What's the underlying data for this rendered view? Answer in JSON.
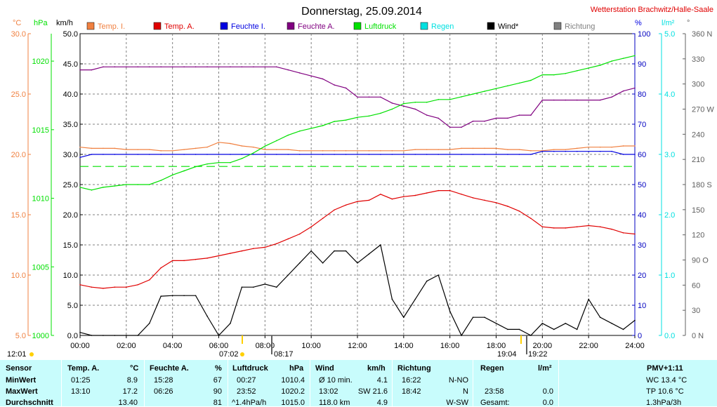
{
  "header": {
    "title": "Donnerstag, 25.09.2014",
    "station": "Wetterstation Brachwitz/Halle-Saale"
  },
  "colors": {
    "temp_i": "#f08040",
    "temp_a": "#e00000",
    "feuchte_i": "#0000e0",
    "feuchte_a": "#800080",
    "luftdruck": "#00e000",
    "regen": "#00e0e0",
    "wind": "#000000",
    "richtung": "#808080",
    "table_bg": "#c8fcfc"
  },
  "axis_units": {
    "celsius": "°C",
    "hpa": "hPa",
    "kmh": "km/h",
    "percent": "%",
    "lm2": "l/m²",
    "deg": "°"
  },
  "chart_data": {
    "type": "line",
    "title": "Donnerstag, 25.09.2014",
    "x": [
      "00:00",
      "00:30",
      "01:00",
      "01:30",
      "02:00",
      "02:30",
      "03:00",
      "03:30",
      "04:00",
      "04:30",
      "05:00",
      "05:30",
      "06:00",
      "06:30",
      "07:00",
      "07:30",
      "08:00",
      "08:30",
      "09:00",
      "09:30",
      "10:00",
      "10:30",
      "11:00",
      "11:30",
      "12:00",
      "12:30",
      "13:00",
      "13:30",
      "14:00",
      "14:30",
      "15:00",
      "15:30",
      "16:00",
      "16:30",
      "17:00",
      "17:30",
      "18:00",
      "18:30",
      "19:00",
      "19:30",
      "20:00",
      "20:30",
      "21:00",
      "21:30",
      "22:00",
      "22:30",
      "23:00",
      "23:30",
      "24:00"
    ],
    "xticks": [
      "00:00",
      "02:00",
      "04:00",
      "06:00",
      "08:00",
      "10:00",
      "12:00",
      "14:00",
      "16:00",
      "18:00",
      "20:00",
      "22:00",
      "24:00"
    ],
    "axes": {
      "celsius": {
        "min": 5.0,
        "max": 30.0,
        "ticks": [
          "5.0",
          "10.0",
          "15.0",
          "20.0",
          "25.0",
          "30.0"
        ]
      },
      "hpa": {
        "min": 1000,
        "max": 1022,
        "ticks": [
          "1000",
          "1005",
          "1010",
          "1015",
          "1020"
        ]
      },
      "kmh": {
        "min": 0.0,
        "max": 50.0,
        "ticks": [
          "0.0",
          "5.0",
          "10.0",
          "15.0",
          "20.0",
          "25.0",
          "30.0",
          "35.0",
          "40.0",
          "45.0",
          "50.0"
        ]
      },
      "percent": {
        "min": 0,
        "max": 100,
        "ticks": [
          "0",
          "10",
          "20",
          "30",
          "40",
          "50",
          "60",
          "70",
          "80",
          "90",
          "100"
        ]
      },
      "lm2": {
        "min": 0.0,
        "max": 5.0,
        "ticks": [
          "0.0",
          "1.0",
          "2.0",
          "3.0",
          "4.0",
          "5.0"
        ]
      },
      "deg": {
        "min": 0,
        "max": 360,
        "ticks": [
          "0 N",
          "30",
          "60",
          "90 O",
          "120",
          "150",
          "180 S",
          "210",
          "240",
          "270 W",
          "300",
          "330",
          "360 N"
        ]
      }
    },
    "series": [
      {
        "name": "Temp. I.",
        "axis": "celsius",
        "values": [
          20.6,
          20.5,
          20.5,
          20.5,
          20.4,
          20.4,
          20.4,
          20.3,
          20.3,
          20.4,
          20.5,
          20.6,
          21.0,
          20.9,
          20.7,
          20.6,
          20.4,
          20.4,
          20.4,
          20.3,
          20.3,
          20.3,
          20.3,
          20.3,
          20.3,
          20.3,
          20.3,
          20.3,
          20.3,
          20.4,
          20.4,
          20.4,
          20.4,
          20.5,
          20.5,
          20.5,
          20.5,
          20.4,
          20.4,
          20.3,
          20.3,
          20.4,
          20.4,
          20.5,
          20.6,
          20.6,
          20.6,
          20.7,
          20.7
        ]
      },
      {
        "name": "Temp. A.",
        "axis": "celsius",
        "values": [
          9.2,
          9.0,
          8.9,
          9.0,
          9.0,
          9.2,
          9.6,
          10.6,
          11.2,
          11.2,
          11.3,
          11.4,
          11.6,
          11.8,
          12.0,
          12.2,
          12.3,
          12.6,
          13.0,
          13.4,
          14.0,
          14.7,
          15.4,
          15.8,
          16.1,
          16.2,
          16.7,
          16.3,
          16.5,
          16.6,
          16.8,
          17.0,
          17.0,
          16.7,
          16.4,
          16.2,
          16.0,
          15.7,
          15.3,
          14.7,
          14.0,
          13.9,
          13.9,
          14.0,
          14.1,
          14.0,
          13.8,
          13.5,
          13.4
        ]
      },
      {
        "name": "Feuchte I.",
        "axis": "percent",
        "values": [
          59,
          60,
          60,
          60,
          60,
          60,
          60,
          60,
          60,
          60,
          60,
          60,
          60,
          60,
          60,
          60,
          60,
          60,
          60,
          60,
          60,
          60,
          60,
          60,
          60,
          60,
          60,
          60,
          60,
          60,
          60,
          60,
          60,
          60,
          60,
          60,
          60,
          60,
          60,
          60,
          61,
          61,
          61,
          61,
          61,
          61,
          61,
          60,
          60
        ]
      },
      {
        "name": "Feuchte A.",
        "axis": "percent",
        "values": [
          88,
          88,
          89,
          89,
          89,
          89,
          89,
          89,
          89,
          89,
          89,
          89,
          89,
          89,
          89,
          89,
          89,
          89,
          88,
          87,
          86,
          85,
          83,
          82,
          79,
          79,
          79,
          77,
          76,
          75,
          73,
          72,
          69,
          69,
          71,
          71,
          72,
          72,
          73,
          73,
          78,
          78,
          78,
          78,
          78,
          78,
          79,
          81,
          82
        ]
      },
      {
        "name": "Luftdruck",
        "axis": "hpa",
        "values": [
          1010.8,
          1010.6,
          1010.8,
          1010.9,
          1011.0,
          1011.0,
          1011.0,
          1011.3,
          1011.7,
          1012.0,
          1012.3,
          1012.5,
          1012.6,
          1012.6,
          1012.9,
          1013.3,
          1013.8,
          1014.2,
          1014.6,
          1014.9,
          1015.1,
          1015.3,
          1015.6,
          1015.7,
          1015.9,
          1016.0,
          1016.2,
          1016.5,
          1016.9,
          1017.0,
          1017.0,
          1017.2,
          1017.2,
          1017.4,
          1017.6,
          1017.8,
          1018.0,
          1018.2,
          1018.4,
          1018.6,
          1019.0,
          1019.0,
          1019.1,
          1019.3,
          1019.5,
          1019.7,
          1020.0,
          1020.2,
          1020.4
        ]
      },
      {
        "name": "Wind*",
        "axis": "kmh",
        "values": [
          0.5,
          0.0,
          0.0,
          0.0,
          0.0,
          0.0,
          2.0,
          6.5,
          6.6,
          6.6,
          6.6,
          3.2,
          0.0,
          2.0,
          8.0,
          8.0,
          8.5,
          8.0,
          10.0,
          12.0,
          14.0,
          12.0,
          14.0,
          14.0,
          12.0,
          13.5,
          15.0,
          6.0,
          3.0,
          6.0,
          9.0,
          10.0,
          4.0,
          0.0,
          3.0,
          3.0,
          2.0,
          1.0,
          1.0,
          0.0,
          2.0,
          1.0,
          2.0,
          1.0,
          6.0,
          3.0,
          2.0,
          1.0,
          2.5
        ]
      }
    ],
    "constant_lines": [
      {
        "name": "Regen",
        "axis": "lm2",
        "value": 2.8,
        "style": "dashed"
      }
    ],
    "legend": [
      "Temp. I.",
      "Temp. A.",
      "Feuchte I.",
      "Feuchte A.",
      "Luftdruck",
      "Regen",
      "Wind*",
      "Richtung"
    ],
    "legend_position": "top",
    "grid": true
  },
  "events": {
    "left_time": "12:01",
    "sunrise": "07:02",
    "markers": [
      "08:17",
      "19:04",
      "19:22"
    ]
  },
  "table": {
    "cols": [
      {
        "h1": "Sensor"
      },
      {
        "h1": "Temp. A.",
        "h2": "°C"
      },
      {
        "h1": "Feuchte A.",
        "h2": "%"
      },
      {
        "h1": "Luftdruck",
        "h2": "hPa"
      },
      {
        "h1": "Wind",
        "h2": "km/h"
      },
      {
        "h1": "Richtung"
      },
      {
        "h1": "Regen",
        "h2": "l/m²"
      },
      {
        "h1": "PMV+1:11"
      }
    ],
    "rows": [
      {
        "label": "MinWert",
        "temp_t": "01:25",
        "temp_v": "8.9",
        "hum_t": "15:28",
        "hum_v": "67",
        "press_t": "00:27",
        "press_v": "1010.4",
        "wind_t": "Ø 10 min.",
        "wind_v": "4.1",
        "dir_t": "16:22",
        "dir_v": "N-NO",
        "rain_t": "",
        "rain_v": "",
        "pmv": "WC 13.4 °C"
      },
      {
        "label": "MaxWert",
        "temp_t": "13:10",
        "temp_v": "17.2",
        "hum_t": "06:26",
        "hum_v": "90",
        "press_t": "23:52",
        "press_v": "1020.2",
        "wind_t": "13:02",
        "wind_m": "SW 21.6",
        "dir_t": "18:42",
        "dir_v": "N",
        "rain_t": "23:58",
        "rain_v": "0.0",
        "pmv": "TP 10.6 °C"
      },
      {
        "label": "Durchschnitt",
        "temp_t": "",
        "temp_v": "13.40",
        "hum_t": "",
        "hum_v": "81",
        "press_t": "^1.4hPa/h",
        "press_v": "1015.0",
        "wind_t": "118.0 km",
        "wind_v": "4.9",
        "dir_t": "",
        "dir_v": "W-SW",
        "rain_t": "Gesamt:",
        "rain_v": "0.0",
        "pmv": "1.3hPa/3h"
      }
    ]
  }
}
